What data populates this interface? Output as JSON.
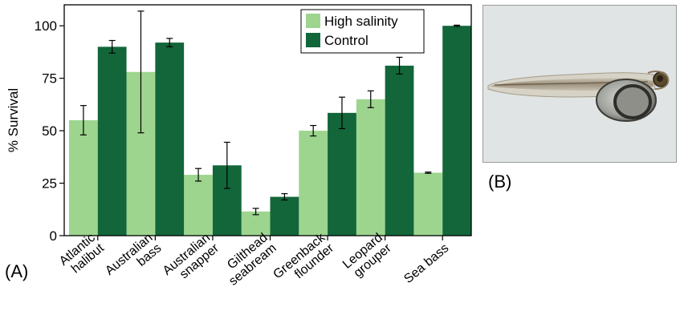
{
  "chart_data": {
    "type": "bar",
    "categories": [
      [
        "Atlantic",
        "halibut"
      ],
      [
        "Australian",
        "bass"
      ],
      [
        "Australian",
        "snapper"
      ],
      [
        "Gilthead",
        "seabream"
      ],
      [
        "Greenback",
        "flounder"
      ],
      [
        "Leopard",
        "grouper"
      ],
      [
        "Sea bass"
      ]
    ],
    "series": [
      {
        "name": "High salinity",
        "color": "#9dd58f",
        "values": [
          55,
          78,
          29,
          11.5,
          50,
          65,
          30
        ],
        "error": [
          7,
          29,
          3,
          1.5,
          2.5,
          4,
          0.3
        ]
      },
      {
        "name": "Control",
        "color": "#12663a",
        "values": [
          90,
          92,
          33.5,
          18.5,
          58.5,
          81,
          100
        ],
        "error": [
          3,
          2,
          11,
          1.5,
          7.5,
          4,
          0.3
        ]
      }
    ],
    "ylabel": "% Survival",
    "xlabel": "",
    "ylim": [
      0,
      110
    ],
    "yticks": [
      0,
      25,
      50,
      75,
      100
    ],
    "legend_position": "top-right",
    "grid": false
  },
  "panels": {
    "a_label": "(A)",
    "b_label": "(B)"
  },
  "photo": {
    "icon": "fish-larva-photo-icon"
  }
}
